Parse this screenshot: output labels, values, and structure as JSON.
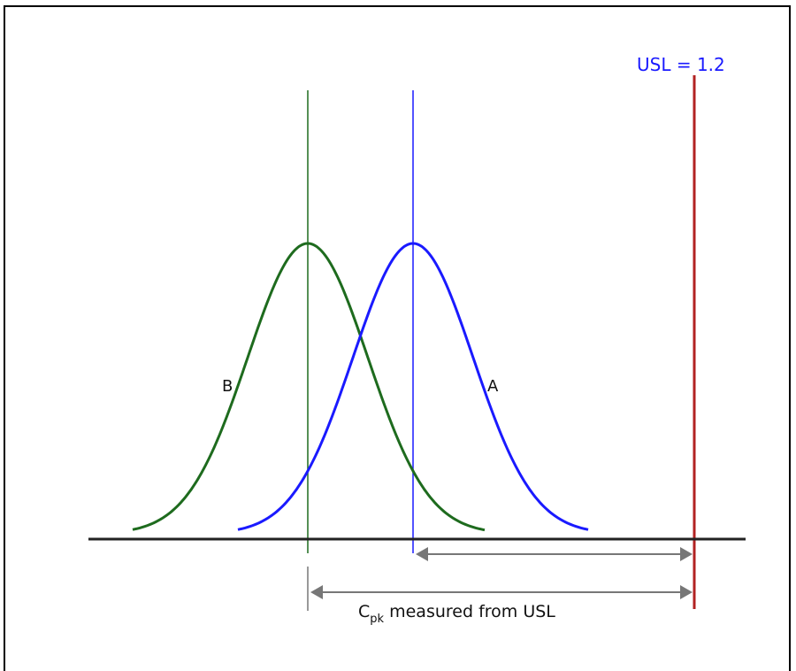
{
  "diagram": {
    "usl_label": "USL = 1.2",
    "curve_b_label": "B",
    "curve_a_label": "A",
    "measure_label": {
      "main": "C",
      "subscript": "pk",
      "rest": " measured from USL"
    }
  },
  "colors": {
    "usl_line": "#b22222",
    "usl_text": "#1a1aff",
    "curve_a": "#1a1aff",
    "curve_b": "#1e6b1e",
    "axis": "#222222",
    "arrows": "#777777",
    "frame": "#000000"
  }
}
